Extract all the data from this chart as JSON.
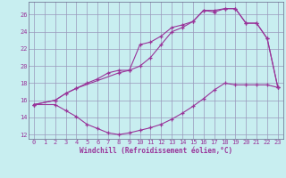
{
  "xlabel": "Windchill (Refroidissement éolien,°C)",
  "xlim": [
    -0.5,
    23.5
  ],
  "ylim": [
    11.5,
    27.5
  ],
  "xticks": [
    0,
    1,
    2,
    3,
    4,
    5,
    6,
    7,
    8,
    9,
    10,
    11,
    12,
    13,
    14,
    15,
    16,
    17,
    18,
    19,
    20,
    21,
    22,
    23
  ],
  "yticks": [
    12,
    14,
    16,
    18,
    20,
    22,
    24,
    26
  ],
  "background_color": "#c8eef0",
  "grid_color": "#9999bb",
  "line_color": "#993399",
  "line1_x": [
    0,
    2,
    3,
    4,
    5,
    6,
    7,
    8,
    9,
    10,
    11,
    12,
    13,
    14,
    15,
    16,
    17,
    18,
    19,
    20,
    21,
    22,
    23
  ],
  "line1_y": [
    15.5,
    16.0,
    16.8,
    17.4,
    18.0,
    18.5,
    19.2,
    19.5,
    19.5,
    20.0,
    21.0,
    22.5,
    24.0,
    24.5,
    25.2,
    26.5,
    26.5,
    26.7,
    26.7,
    25.0,
    25.0,
    23.2,
    17.5
  ],
  "line2_x": [
    0,
    2,
    3,
    4,
    8,
    9,
    10,
    11,
    12,
    13,
    14,
    15,
    16,
    17,
    18,
    19,
    20,
    21,
    22,
    23
  ],
  "line2_y": [
    15.5,
    16.0,
    16.8,
    17.4,
    19.2,
    19.5,
    22.5,
    22.8,
    23.5,
    24.5,
    24.8,
    25.2,
    26.5,
    26.3,
    26.7,
    26.7,
    25.0,
    25.0,
    23.2,
    17.5
  ],
  "line3_x": [
    0,
    2,
    3,
    4,
    5,
    6,
    7,
    8,
    9,
    10,
    11,
    12,
    13,
    14,
    15,
    16,
    17,
    18,
    19,
    20,
    21,
    22,
    23
  ],
  "line3_y": [
    15.5,
    15.5,
    14.8,
    14.1,
    13.2,
    12.7,
    12.2,
    12.0,
    12.2,
    12.5,
    12.8,
    13.2,
    13.8,
    14.5,
    15.3,
    16.2,
    17.2,
    18.0,
    17.8,
    17.8,
    17.8,
    17.8,
    17.5
  ]
}
